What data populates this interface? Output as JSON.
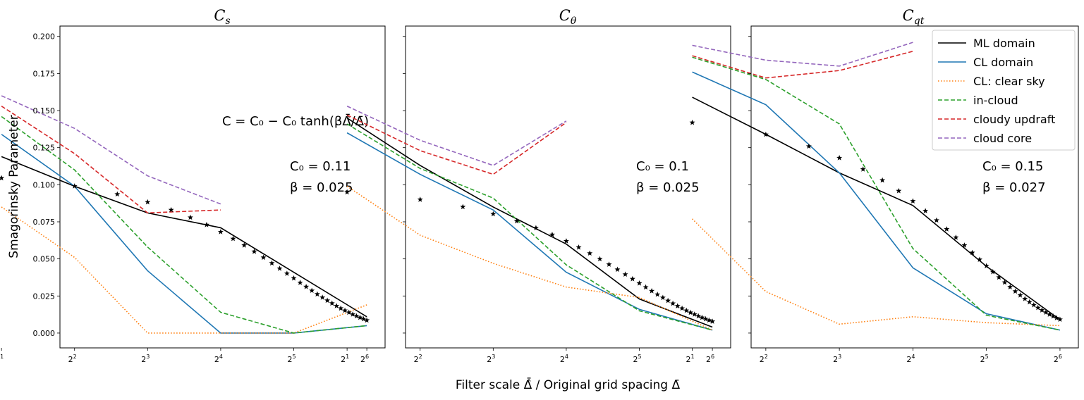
{
  "figure": {
    "ylabel": "Smagorinsky Parameter",
    "xlabel": "Filter scale Δ̂̄ / Original grid spacing Δ̄",
    "formula": "C = C₀ − C₀ tanh(βΔ̂̄/Δ̄)"
  },
  "legend": [
    {
      "name": "ML domain",
      "color": "#000000",
      "dash": "solid"
    },
    {
      "name": "CL domain",
      "color": "#1f77b4",
      "dash": "solid"
    },
    {
      "name": "CL: clear sky",
      "color": "#ff7f0e",
      "dash": "dotted"
    },
    {
      "name": "in-cloud",
      "color": "#2ca02c",
      "dash": "dashed"
    },
    {
      "name": "cloudy updraft",
      "color": "#d62728",
      "dash": "dashed"
    },
    {
      "name": "cloud core",
      "color": "#9467bd",
      "dash": "dashed"
    }
  ],
  "chart_data": [
    {
      "type": "line",
      "title": "Cs",
      "title_main": "C",
      "title_sub": "s",
      "x_scale": "log2",
      "xlim": [
        1.8,
        6.25
      ],
      "ylim": [
        -0.01,
        0.207
      ],
      "xticks": [
        1,
        2,
        3,
        4,
        5,
        6
      ],
      "yticks": [
        "0.000",
        "0.025",
        "0.050",
        "0.075",
        "0.100",
        "0.125",
        "0.150",
        "0.175",
        "0.200"
      ],
      "annotation": {
        "c0_label": "C₀ = 0.11",
        "beta_label": "β = 0.025"
      },
      "series": [
        {
          "name": "ML domain",
          "x": [
            1,
            2,
            3,
            4,
            6
          ],
          "y": [
            0.119,
            0.099,
            0.081,
            0.071,
            0.011
          ]
        },
        {
          "name": "CL domain",
          "x": [
            1,
            2,
            3,
            4,
            5,
            6
          ],
          "y": [
            0.134,
            0.099,
            0.042,
            0.0,
            0.0,
            0.005
          ]
        },
        {
          "name": "CL: clear sky",
          "x": [
            1,
            2,
            3,
            4,
            5,
            6
          ],
          "y": [
            0.085,
            0.051,
            0.0,
            0.0,
            0.0,
            0.019
          ]
        },
        {
          "name": "in-cloud",
          "x": [
            1,
            2,
            3,
            4,
            5,
            6
          ],
          "y": [
            0.146,
            0.11,
            0.058,
            0.014,
            0.0,
            0.005
          ]
        },
        {
          "name": "cloudy updraft",
          "x": [
            1,
            2,
            3,
            4
          ],
          "y": [
            0.153,
            0.121,
            0.081,
            0.083
          ]
        },
        {
          "name": "cloud core",
          "x": [
            1,
            2,
            3,
            4
          ],
          "y": [
            0.16,
            0.138,
            0.106,
            0.087
          ]
        }
      ],
      "stars": {
        "c0": 0.11,
        "beta": 0.025
      }
    },
    {
      "type": "line",
      "title": "Cθ",
      "title_main": "C",
      "title_sub": "θ",
      "x_scale": "log2",
      "xlim": [
        1.8,
        6.25
      ],
      "ylim": [
        -0.01,
        0.207
      ],
      "xticks": [
        1,
        2,
        3,
        4,
        5,
        6
      ],
      "annotation": {
        "c0_label": "C₀ = 0.1",
        "beta_label": "β = 0.025"
      },
      "series": [
        {
          "name": "ML domain",
          "x": [
            1,
            2,
            3,
            4,
            5,
            6
          ],
          "y": [
            0.145,
            0.113,
            0.085,
            0.06,
            0.023,
            0.004
          ]
        },
        {
          "name": "CL domain",
          "x": [
            1,
            2,
            3,
            4,
            5,
            6
          ],
          "y": [
            0.135,
            0.107,
            0.083,
            0.041,
            0.016,
            0.002
          ]
        },
        {
          "name": "CL: clear sky",
          "x": [
            1,
            2,
            3,
            4,
            5,
            6
          ],
          "y": [
            0.099,
            0.066,
            0.047,
            0.031,
            0.024,
            0.002
          ]
        },
        {
          "name": "in-cloud",
          "x": [
            1,
            2,
            3,
            4,
            5,
            6
          ],
          "y": [
            0.141,
            0.111,
            0.091,
            0.046,
            0.015,
            0.002
          ]
        },
        {
          "name": "cloudy updraft",
          "x": [
            1,
            2,
            3,
            4
          ],
          "y": [
            0.147,
            0.123,
            0.107,
            0.142
          ]
        },
        {
          "name": "cloud core",
          "x": [
            1,
            2,
            3,
            4
          ],
          "y": [
            0.153,
            0.13,
            0.113,
            0.143
          ]
        }
      ],
      "stars": {
        "c0": 0.1,
        "beta": 0.025
      }
    },
    {
      "type": "line",
      "title": "Cqt",
      "title_main": "C",
      "title_sub": "qt",
      "x_scale": "log2",
      "xlim": [
        1.8,
        6.25
      ],
      "ylim": [
        -0.01,
        0.207
      ],
      "xticks": [
        1,
        2,
        3,
        4,
        5,
        6
      ],
      "annotation": {
        "c0_label": "C₀ = 0.15",
        "beta_label": "β = 0.027"
      },
      "series": [
        {
          "name": "ML domain",
          "x": [
            1,
            2,
            3,
            4,
            5,
            6
          ],
          "y": [
            0.159,
            0.134,
            0.108,
            0.086,
            0.045,
            0.009
          ]
        },
        {
          "name": "CL domain",
          "x": [
            1,
            2,
            3,
            4,
            5,
            6
          ],
          "y": [
            0.176,
            0.154,
            0.108,
            0.044,
            0.013,
            0.002
          ]
        },
        {
          "name": "CL: clear sky",
          "x": [
            1,
            2,
            3,
            4,
            5,
            6
          ],
          "y": [
            0.077,
            0.028,
            0.006,
            0.011,
            0.007,
            0.005
          ]
        },
        {
          "name": "in-cloud",
          "x": [
            1,
            2,
            3,
            4,
            5,
            6
          ],
          "y": [
            0.186,
            0.171,
            0.141,
            0.057,
            0.012,
            0.002
          ]
        },
        {
          "name": "cloudy updraft",
          "x": [
            1,
            2,
            3,
            4
          ],
          "y": [
            0.187,
            0.172,
            0.177,
            0.19
          ]
        },
        {
          "name": "cloud core",
          "x": [
            1,
            2,
            3,
            4
          ],
          "y": [
            0.194,
            0.184,
            0.18,
            0.196
          ]
        }
      ],
      "stars": {
        "c0": 0.15,
        "beta": 0.027
      }
    }
  ]
}
